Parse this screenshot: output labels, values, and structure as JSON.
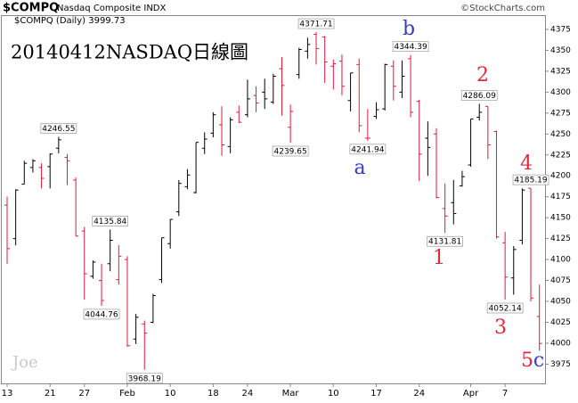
{
  "chart_data": {
    "type": "ohlc",
    "symbol": "$COMPQ",
    "name": "Nasdaq Composite INDX",
    "source": "©StockCharts.com",
    "series_label": "$COMPQ (Daily)",
    "title": "20140412NASDAQ日線圖",
    "watermark": "Joe",
    "waves": [
      {
        "text": "b",
        "color": "#3a3ac8"
      },
      {
        "text": "a",
        "color": "#3a3ac8"
      },
      {
        "text": "2",
        "color": "#e0283c"
      },
      {
        "text": "1",
        "color": "#e0283c"
      },
      {
        "text": "4",
        "color": "#e0283c"
      },
      {
        "text": "3",
        "color": "#e0283c"
      },
      {
        "text": "5",
        "color": "#e0283c"
      },
      {
        "text": "c",
        "color": "#3a3ac8"
      }
    ],
    "categories": [
      "13",
      null,
      null,
      null,
      null,
      "21",
      null,
      null,
      null,
      "27",
      null,
      null,
      null,
      null,
      "Feb",
      null,
      null,
      null,
      null,
      "10",
      null,
      null,
      null,
      null,
      "18",
      null,
      null,
      null,
      "24",
      null,
      null,
      null,
      null,
      "Mar",
      null,
      null,
      null,
      null,
      "10",
      null,
      null,
      null,
      null,
      "17",
      null,
      null,
      null,
      null,
      "24",
      null,
      null,
      null,
      null,
      null,
      "Apr",
      null,
      null,
      null,
      "7",
      null,
      null,
      null,
      null
    ],
    "open": [
      4165,
      4125,
      4190,
      4210,
      4210,
      4211,
      4233,
      4222,
      4195,
      4134,
      4080,
      4075,
      4095,
      4076,
      4100,
      4005,
      4023,
      4025,
      4076,
      4119,
      4157,
      4187,
      4180,
      4233,
      4251,
      4261,
      4235,
      4276,
      4273,
      4296,
      4300,
      4288,
      4328,
      4258,
      4321,
      4349,
      4369,
      4366,
      4331,
      4337,
      4290,
      4333,
      4245,
      4271,
      4280,
      4331,
      4300,
      4340,
      4289,
      4245,
      4250,
      4161,
      4168,
      4188,
      4213,
      4270,
      4283,
      4253,
      4120,
      4078,
      4123,
      4185.19,
      4032
    ],
    "high": [
      4175,
      4184,
      4218,
      4220,
      4215,
      4227,
      4246.55,
      4226,
      4198,
      4139,
      4099,
      4095,
      4135.84,
      4117,
      4104,
      4035,
      4027,
      4059,
      4126,
      4148,
      4195,
      4208,
      4240,
      4252,
      4276,
      4283,
      4270,
      4284,
      4315,
      4307,
      4316,
      4322,
      4342,
      4285,
      4353,
      4365,
      4371.71,
      4367,
      4339,
      4345,
      4323,
      4340,
      4280,
      4288,
      4334,
      4338,
      4338,
      4344.39,
      4291,
      4265,
      4257,
      4191,
      4195,
      4206,
      4268,
      4286.09,
      4283,
      4254,
      4133,
      4116,
      4185,
      4185.19,
      4070
    ],
    "low": [
      4095,
      4117,
      4190,
      4204,
      4185,
      4185,
      4227,
      4189,
      4128,
      4052,
      4077,
      4044.76,
      4086,
      4070,
      3996,
      3999,
      3968.19,
      4024,
      4072,
      4113,
      4152,
      4184,
      4179,
      4226,
      4246,
      4224,
      4227,
      4263,
      4270,
      4276,
      4280,
      4286,
      4272,
      4239.65,
      4316,
      4340,
      4333,
      4311,
      4303,
      4296,
      4277,
      4252,
      4241.94,
      4268,
      4278,
      4290,
      4293,
      4270,
      4194,
      4200,
      4173,
      4131.81,
      4142,
      4187,
      4211,
      4266,
      4220,
      4125,
      4052.14,
      4058,
      4118,
      4050,
      3991
    ],
    "close": [
      4113,
      4183,
      4215,
      4218,
      4197,
      4226,
      4243,
      4218,
      4128,
      4083,
      4097,
      4051,
      4123,
      4104,
      3997,
      4031,
      4012,
      4057,
      4126,
      4148,
      4191,
      4201,
      4240,
      4244,
      4273,
      4237,
      4267,
      4264,
      4292,
      4287,
      4292,
      4319,
      4308,
      4277,
      4351,
      4357,
      4352,
      4336,
      4334,
      4307,
      4323,
      4260,
      4245,
      4279,
      4333,
      4307,
      4319,
      4276,
      4226,
      4234,
      4174,
      4152,
      4155,
      4199,
      4268,
      4276,
      4237,
      4127,
      4079,
      4112,
      4183,
      4054,
      3999.73
    ],
    "up_color": "#000000",
    "down_color": "#e0193a",
    "callouts": [
      {
        "index": 6,
        "at": "high"
      },
      {
        "index": 11,
        "at": "low"
      },
      {
        "index": 12,
        "at": "high"
      },
      {
        "index": 16,
        "at": "low"
      },
      {
        "index": 33,
        "at": "low"
      },
      {
        "index": 36,
        "at": "high"
      },
      {
        "index": 42,
        "at": "low"
      },
      {
        "index": 47,
        "at": "high"
      },
      {
        "index": 51,
        "at": "low"
      },
      {
        "index": 55,
        "at": "high"
      },
      {
        "index": 58,
        "at": "low"
      },
      {
        "index": 61,
        "at": "high"
      }
    ],
    "ylim": [
      3952,
      4392
    ],
    "yticks": [
      3975,
      4000,
      4025,
      4050,
      4075,
      4100,
      4125,
      4150,
      4175,
      4200,
      4225,
      4250,
      4275,
      4300,
      4325,
      4350,
      4375
    ],
    "grid": false
  }
}
